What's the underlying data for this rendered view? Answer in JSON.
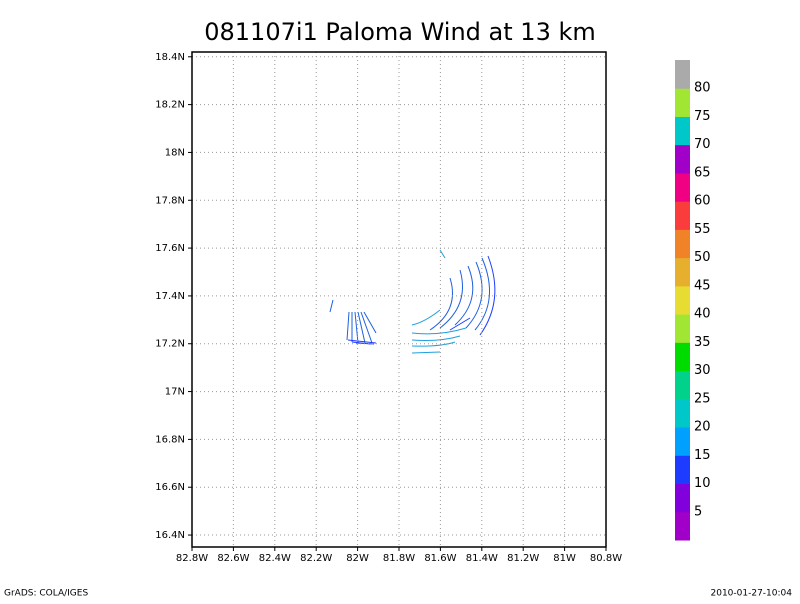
{
  "chart_data": {
    "type": "streamline",
    "title": "081107i1 Paloma Wind at 13 km",
    "xlim": [
      -82.8,
      -80.8
    ],
    "ylim": [
      16.35,
      18.42
    ],
    "xticks": [
      {
        "value": -82.8,
        "label": "82.8W"
      },
      {
        "value": -82.6,
        "label": "82.6W"
      },
      {
        "value": -82.4,
        "label": "82.4W"
      },
      {
        "value": -82.2,
        "label": "82.2W"
      },
      {
        "value": -82,
        "label": "82W"
      },
      {
        "value": -81.8,
        "label": "81.8W"
      },
      {
        "value": -81.6,
        "label": "81.6W"
      },
      {
        "value": -81.4,
        "label": "81.4W"
      },
      {
        "value": -81.2,
        "label": "81.2W"
      },
      {
        "value": -81,
        "label": "81W"
      },
      {
        "value": -80.8,
        "label": "80.8W"
      }
    ],
    "yticks": [
      {
        "value": 16.4,
        "label": "16.4N"
      },
      {
        "value": 16.6,
        "label": "16.6N"
      },
      {
        "value": 16.8,
        "label": "16.8N"
      },
      {
        "value": 17,
        "label": "17N"
      },
      {
        "value": 17.2,
        "label": "17.2N"
      },
      {
        "value": 17.4,
        "label": "17.4N"
      },
      {
        "value": 17.6,
        "label": "17.6N"
      },
      {
        "value": 17.8,
        "label": "17.8N"
      },
      {
        "value": 18,
        "label": "18N"
      },
      {
        "value": 18.2,
        "label": "18.2N"
      },
      {
        "value": 18.4,
        "label": "18.4N"
      }
    ],
    "grid": true,
    "colorbar": {
      "levels": [
        5,
        10,
        15,
        20,
        25,
        30,
        35,
        40,
        45,
        50,
        55,
        60,
        65,
        70,
        75,
        80
      ],
      "colors": [
        "#a000c8",
        "#8200dc",
        "#1e3cff",
        "#00a0ff",
        "#00c8c8",
        "#00d28c",
        "#00dc00",
        "#a0e632",
        "#e6dc32",
        "#e6af2d",
        "#f08228",
        "#fa3c3c",
        "#f00082",
        "#a000c8",
        "#00c8c8",
        "#a0e632",
        "#aaaaaa"
      ]
    },
    "footer_left": "GrADS: COLA/IGES",
    "footer_right": "2010-01-27-10:04"
  }
}
